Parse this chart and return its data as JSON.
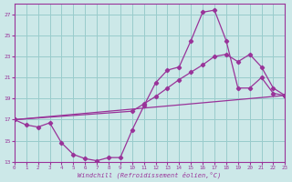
{
  "xlabel": "Windchill (Refroidissement éolien,°C)",
  "bg_color": "#cce8e8",
  "line_color": "#993399",
  "grid_color": "#99cccc",
  "xlim": [
    0,
    23
  ],
  "ylim": [
    13,
    28
  ],
  "xticks": [
    0,
    1,
    2,
    3,
    4,
    5,
    6,
    7,
    8,
    9,
    10,
    11,
    12,
    13,
    14,
    15,
    16,
    17,
    18,
    19,
    20,
    21,
    22,
    23
  ],
  "yticks": [
    13,
    15,
    17,
    19,
    21,
    23,
    25,
    27
  ],
  "line1_x": [
    0,
    1,
    2,
    3,
    4,
    5,
    6,
    7,
    8,
    9,
    10,
    11,
    12,
    13,
    14,
    15,
    16,
    17,
    18,
    19,
    20,
    21,
    22,
    23
  ],
  "line1_y": [
    17.0,
    16.5,
    16.3,
    16.7,
    14.8,
    13.7,
    13.3,
    13.1,
    13.4,
    13.4,
    16.0,
    18.3,
    20.5,
    21.7,
    22.0,
    24.5,
    27.2,
    27.4,
    24.5,
    20.0,
    20.0,
    21.0,
    19.5,
    19.3
  ],
  "line2_x": [
    0,
    10,
    11,
    12,
    13,
    14,
    15,
    16,
    17,
    18,
    19,
    20,
    21,
    22,
    23
  ],
  "line2_y": [
    17.0,
    17.8,
    18.5,
    19.2,
    20.0,
    20.8,
    21.5,
    22.2,
    23.0,
    23.2,
    22.5,
    23.2,
    22.0,
    20.0,
    19.3
  ],
  "line3_x": [
    0,
    23
  ],
  "line3_y": [
    17.0,
    19.3
  ]
}
